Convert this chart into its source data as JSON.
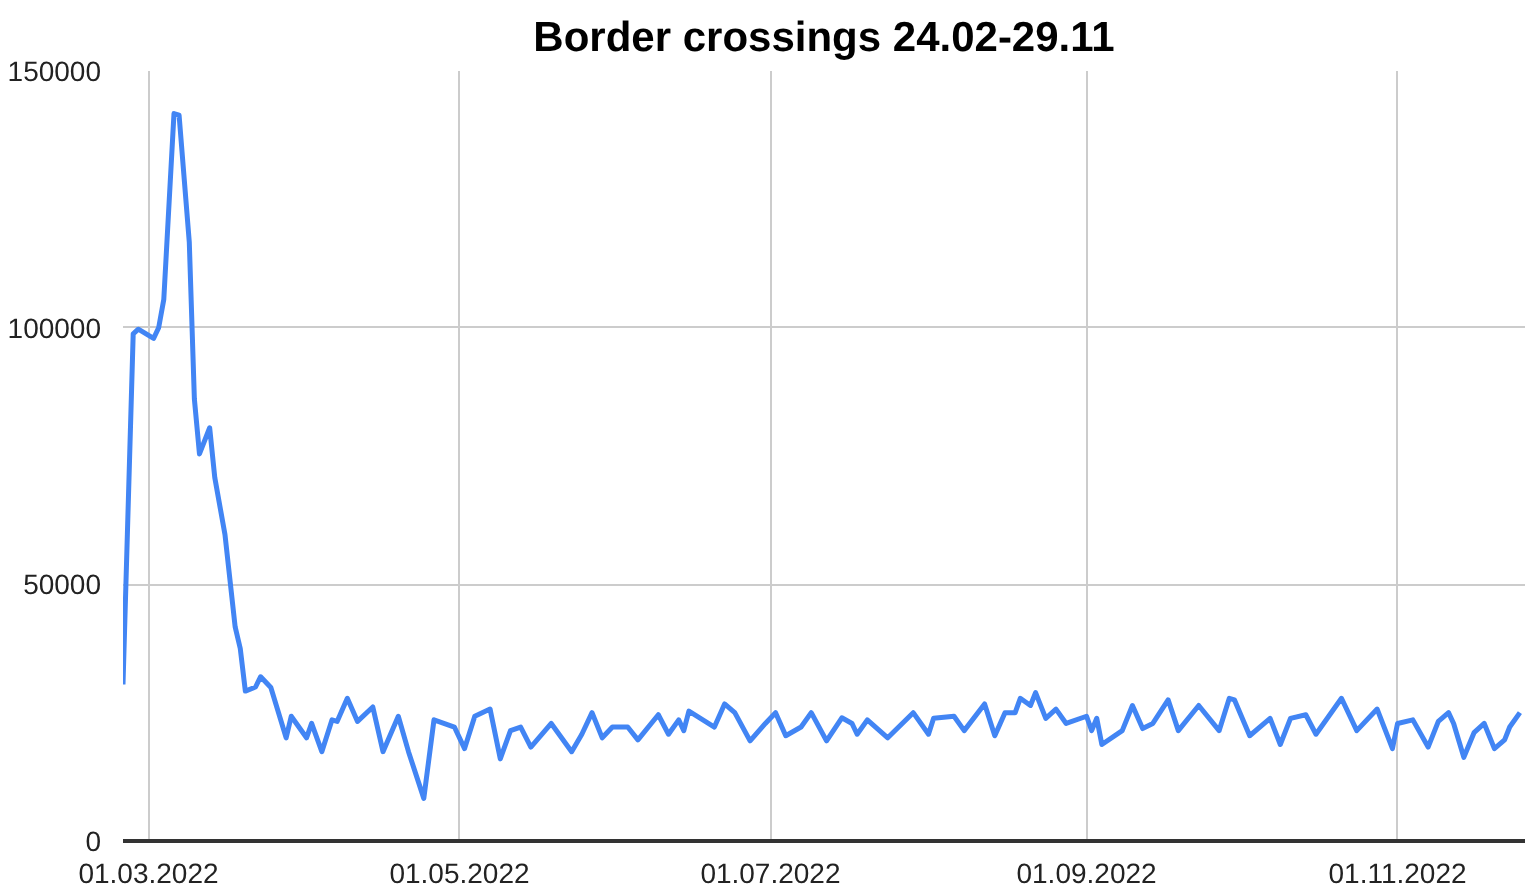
{
  "chart_data": {
    "type": "line",
    "title": "Border crossings 24.02-29.11",
    "x": [
      "2022-02-24",
      "2022-02-26",
      "2022-02-27",
      "2022-03-02",
      "2022-03-03",
      "2022-03-04",
      "2022-03-06",
      "2022-03-07",
      "2022-03-09",
      "2022-03-10",
      "2022-03-11",
      "2022-03-13",
      "2022-03-14",
      "2022-03-16",
      "2022-03-18",
      "2022-03-19",
      "2022-03-20",
      "2022-03-22",
      "2022-03-23",
      "2022-03-25",
      "2022-03-28",
      "2022-03-29",
      "2022-04-01",
      "2022-04-02",
      "2022-04-04",
      "2022-04-06",
      "2022-04-07",
      "2022-04-09",
      "2022-04-11",
      "2022-04-14",
      "2022-04-16",
      "2022-04-19",
      "2022-04-21",
      "2022-04-24",
      "2022-04-26",
      "2022-04-30",
      "2022-05-02",
      "2022-05-04",
      "2022-05-07",
      "2022-05-09",
      "2022-05-11",
      "2022-05-13",
      "2022-05-15",
      "2022-05-19",
      "2022-05-23",
      "2022-05-25",
      "2022-05-27",
      "2022-05-29",
      "2022-05-31",
      "2022-06-03",
      "2022-06-05",
      "2022-06-09",
      "2022-06-11",
      "2022-06-13",
      "2022-06-14",
      "2022-06-15",
      "2022-06-20",
      "2022-06-22",
      "2022-06-24",
      "2022-06-27",
      "2022-06-30",
      "2022-07-02",
      "2022-07-04",
      "2022-07-07",
      "2022-07-09",
      "2022-07-12",
      "2022-07-15",
      "2022-07-17",
      "2022-07-18",
      "2022-07-20",
      "2022-07-24",
      "2022-07-29",
      "2022-08-01",
      "2022-08-02",
      "2022-08-06",
      "2022-08-08",
      "2022-08-12",
      "2022-08-14",
      "2022-08-16",
      "2022-08-18",
      "2022-08-19",
      "2022-08-21",
      "2022-08-22",
      "2022-08-24",
      "2022-08-26",
      "2022-08-28",
      "2022-09-01",
      "2022-09-02",
      "2022-09-03",
      "2022-09-04",
      "2022-09-08",
      "2022-09-10",
      "2022-09-12",
      "2022-09-14",
      "2022-09-17",
      "2022-09-19",
      "2022-09-23",
      "2022-09-27",
      "2022-09-29",
      "2022-09-30",
      "2022-10-03",
      "2022-10-07",
      "2022-10-09",
      "2022-10-11",
      "2022-10-14",
      "2022-10-16",
      "2022-10-21",
      "2022-10-24",
      "2022-10-28",
      "2022-10-31",
      "2022-11-01",
      "2022-11-04",
      "2022-11-07",
      "2022-11-09",
      "2022-11-11",
      "2022-11-12",
      "2022-11-14",
      "2022-11-16",
      "2022-11-18",
      "2022-11-20",
      "2022-11-22",
      "2022-11-23",
      "2022-11-25"
    ],
    "series": [
      {
        "color": "#4285f4",
        "values": [
          30500,
          98800,
          99700,
          97900,
          100000,
          105500,
          141700,
          141400,
          116700,
          86100,
          75400,
          80500,
          70800,
          59700,
          41700,
          37500,
          29200,
          30000,
          32000,
          29900,
          20100,
          24300,
          20100,
          22900,
          17400,
          23600,
          23300,
          27800,
          23300,
          26100,
          17400,
          24300,
          17400,
          8300,
          23600,
          22200,
          18000,
          24300,
          25700,
          16000,
          21500,
          22200,
          18300,
          22900,
          17400,
          20800,
          25000,
          20100,
          22200,
          22200,
          19700,
          24600,
          20800,
          23600,
          21500,
          25300,
          22200,
          26700,
          25000,
          19500,
          22900,
          25000,
          20500,
          22200,
          25000,
          19500,
          24000,
          22900,
          20800,
          23600,
          20100,
          25000,
          20800,
          23900,
          24300,
          21500,
          26700,
          20500,
          25000,
          25000,
          27800,
          26400,
          28900,
          23900,
          25700,
          22900,
          24300,
          21500,
          23900,
          18800,
          21500,
          26400,
          21900,
          22900,
          27500,
          21500,
          26400,
          21500,
          27800,
          27500,
          20500,
          23900,
          18800,
          23900,
          24600,
          20800,
          27800,
          21500,
          25700,
          18000,
          22900,
          23600,
          18300,
          23300,
          25000,
          22900,
          16300,
          21100,
          22900,
          18000,
          19700,
          22200,
          25000
        ]
      }
    ],
    "xlim": [
      "2022-02-24",
      "2022-11-26"
    ],
    "xticks": [
      {
        "value": "2022-03-01",
        "label": "01.03.2022"
      },
      {
        "value": "2022-05-01",
        "label": "01.05.2022"
      },
      {
        "value": "2022-07-01",
        "label": "01.07.2022"
      },
      {
        "value": "2022-09-01",
        "label": "01.09.2022"
      },
      {
        "value": "2022-11-01",
        "label": "01.11.2022"
      }
    ],
    "ylim": [
      0,
      150000
    ],
    "yticks": [
      0,
      50000,
      100000,
      150000
    ],
    "grid": true,
    "marker": "none",
    "line_style": "solid"
  }
}
